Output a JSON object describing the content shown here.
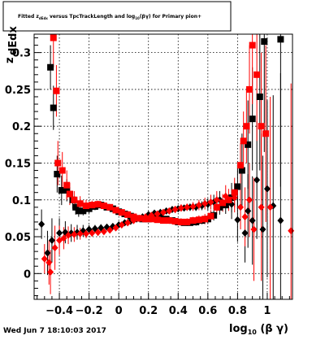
{
  "title": {
    "line": "Fitted z",
    "sub": "dEdx",
    "rest": " versus TpcTrackLength and log",
    "sub2": "10",
    "tail": "(βγ) for Primary pion+"
  },
  "date_label": "Wed Jun  7 18:10:03 2017",
  "chart_data": {
    "type": "scatter",
    "xlabel": "log10 (β γ)",
    "ylabel": "z dEdx",
    "xlim": [
      -0.57,
      1.17
    ],
    "ylim": [
      -0.035,
      0.325
    ],
    "grid": true,
    "x_ticks": [
      -0.4,
      -0.2,
      0,
      0.2,
      0.4,
      0.6,
      0.8,
      1
    ],
    "x_tick_labels": [
      "−0.4",
      "−0.2",
      "0",
      "0.2",
      "0.4",
      "0.6",
      "0.8",
      "1"
    ],
    "y_ticks": [
      0,
      0.05,
      0.1,
      0.15,
      0.2,
      0.25,
      0.3
    ],
    "y_tick_labels": [
      "0",
      "0.05",
      "0.1",
      "0.15",
      "0.2",
      "0.25",
      "0.3"
    ],
    "colors": {
      "black": "#000000",
      "red": "#ff0000"
    },
    "series": [
      {
        "color": "#000000",
        "marker": "square",
        "points": [
          {
            "x": -0.46,
            "y": 0.28,
            "e": 0.03
          },
          {
            "x": -0.44,
            "y": 0.225,
            "e": 0.03
          },
          {
            "x": -0.415,
            "y": 0.135,
            "e": 0.025
          },
          {
            "x": -0.385,
            "y": 0.113,
            "e": 0.02
          },
          {
            "x": -0.35,
            "y": 0.113,
            "e": 0.015
          },
          {
            "x": -0.31,
            "y": 0.1,
            "e": 0.012
          },
          {
            "x": -0.29,
            "y": 0.09,
            "e": 0.01
          },
          {
            "x": -0.27,
            "y": 0.085,
            "e": 0.008
          },
          {
            "x": -0.24,
            "y": 0.085,
            "e": 0.006
          },
          {
            "x": -0.2,
            "y": 0.088,
            "e": 0.006
          },
          {
            "x": -0.16,
            "y": 0.091,
            "e": 0.005
          },
          {
            "x": -0.12,
            "y": 0.093,
            "e": 0.004
          },
          {
            "x": -0.08,
            "y": 0.09,
            "e": 0.004
          },
          {
            "x": -0.04,
            "y": 0.088,
            "e": 0.004
          },
          {
            "x": 0.0,
            "y": 0.084,
            "e": 0.004
          },
          {
            "x": 0.04,
            "y": 0.081,
            "e": 0.004
          },
          {
            "x": 0.08,
            "y": 0.078,
            "e": 0.004
          },
          {
            "x": 0.12,
            "y": 0.075,
            "e": 0.004
          },
          {
            "x": 0.16,
            "y": 0.074,
            "e": 0.004
          },
          {
            "x": 0.2,
            "y": 0.074,
            "e": 0.004
          },
          {
            "x": 0.24,
            "y": 0.075,
            "e": 0.004
          },
          {
            "x": 0.28,
            "y": 0.076,
            "e": 0.004
          },
          {
            "x": 0.32,
            "y": 0.074,
            "e": 0.004
          },
          {
            "x": 0.36,
            "y": 0.072,
            "e": 0.004
          },
          {
            "x": 0.4,
            "y": 0.07,
            "e": 0.004
          },
          {
            "x": 0.44,
            "y": 0.069,
            "e": 0.004
          },
          {
            "x": 0.48,
            "y": 0.069,
            "e": 0.004
          },
          {
            "x": 0.52,
            "y": 0.07,
            "e": 0.005
          },
          {
            "x": 0.56,
            "y": 0.072,
            "e": 0.005
          },
          {
            "x": 0.6,
            "y": 0.074,
            "e": 0.006
          },
          {
            "x": 0.64,
            "y": 0.079,
            "e": 0.007
          },
          {
            "x": 0.68,
            "y": 0.09,
            "e": 0.01
          },
          {
            "x": 0.72,
            "y": 0.093,
            "e": 0.012
          },
          {
            "x": 0.76,
            "y": 0.103,
            "e": 0.02
          },
          {
            "x": 0.8,
            "y": 0.118,
            "e": 0.03
          },
          {
            "x": 0.83,
            "y": 0.14,
            "e": 0.05
          },
          {
            "x": 0.87,
            "y": 0.175,
            "e": 0.06
          },
          {
            "x": 0.9,
            "y": 0.21,
            "e": 0.07
          },
          {
            "x": 0.95,
            "y": 0.24,
            "e": 0.1
          },
          {
            "x": 0.98,
            "y": 0.315,
            "e": 0.15
          },
          {
            "x": 1.09,
            "y": 0.318,
            "e": 0.2
          }
        ]
      },
      {
        "color": "#000000",
        "marker": "diamond",
        "points": [
          {
            "x": -0.52,
            "y": 0.067,
            "e": 0.02
          },
          {
            "x": -0.48,
            "y": 0.028,
            "e": 0.03
          },
          {
            "x": -0.45,
            "y": 0.045,
            "e": 0.03
          },
          {
            "x": -0.4,
            "y": 0.055,
            "e": 0.02
          },
          {
            "x": -0.36,
            "y": 0.056,
            "e": 0.015
          },
          {
            "x": -0.32,
            "y": 0.055,
            "e": 0.012
          },
          {
            "x": -0.28,
            "y": 0.056,
            "e": 0.01
          },
          {
            "x": -0.24,
            "y": 0.058,
            "e": 0.008
          },
          {
            "x": -0.2,
            "y": 0.06,
            "e": 0.006
          },
          {
            "x": -0.16,
            "y": 0.061,
            "e": 0.005
          },
          {
            "x": -0.12,
            "y": 0.062,
            "e": 0.005
          },
          {
            "x": -0.08,
            "y": 0.063,
            "e": 0.004
          },
          {
            "x": -0.04,
            "y": 0.064,
            "e": 0.004
          },
          {
            "x": 0.0,
            "y": 0.066,
            "e": 0.004
          },
          {
            "x": 0.04,
            "y": 0.069,
            "e": 0.004
          },
          {
            "x": 0.08,
            "y": 0.071,
            "e": 0.004
          },
          {
            "x": 0.12,
            "y": 0.074,
            "e": 0.004
          },
          {
            "x": 0.16,
            "y": 0.077,
            "e": 0.004
          },
          {
            "x": 0.2,
            "y": 0.08,
            "e": 0.004
          },
          {
            "x": 0.24,
            "y": 0.082,
            "e": 0.004
          },
          {
            "x": 0.28,
            "y": 0.083,
            "e": 0.004
          },
          {
            "x": 0.32,
            "y": 0.085,
            "e": 0.004
          },
          {
            "x": 0.36,
            "y": 0.087,
            "e": 0.004
          },
          {
            "x": 0.4,
            "y": 0.088,
            "e": 0.004
          },
          {
            "x": 0.44,
            "y": 0.089,
            "e": 0.004
          },
          {
            "x": 0.48,
            "y": 0.09,
            "e": 0.005
          },
          {
            "x": 0.52,
            "y": 0.09,
            "e": 0.005
          },
          {
            "x": 0.56,
            "y": 0.092,
            "e": 0.006
          },
          {
            "x": 0.6,
            "y": 0.094,
            "e": 0.008
          },
          {
            "x": 0.64,
            "y": 0.097,
            "e": 0.01
          },
          {
            "x": 0.68,
            "y": 0.1,
            "e": 0.012
          },
          {
            "x": 0.76,
            "y": 0.094,
            "e": 0.02
          },
          {
            "x": 0.8,
            "y": 0.073,
            "e": 0.03
          },
          {
            "x": 0.85,
            "y": 0.055,
            "e": 0.04
          },
          {
            "x": 0.87,
            "y": 0.085,
            "e": 0.05
          },
          {
            "x": 0.9,
            "y": 0.072,
            "e": 0.06
          },
          {
            "x": 0.93,
            "y": 0.127,
            "e": 0.08
          },
          {
            "x": 0.97,
            "y": 0.06,
            "e": 0.1
          },
          {
            "x": 1.0,
            "y": 0.115,
            "e": 0.12
          },
          {
            "x": 1.04,
            "y": 0.092,
            "e": 0.15
          },
          {
            "x": 1.09,
            "y": 0.072,
            "e": 0.2
          }
        ]
      },
      {
        "color": "#ff0000",
        "marker": "square",
        "points": [
          {
            "x": -0.44,
            "y": 0.32,
            "e": 0.04
          },
          {
            "x": -0.42,
            "y": 0.248,
            "e": 0.035
          },
          {
            "x": -0.41,
            "y": 0.15,
            "e": 0.03
          },
          {
            "x": -0.38,
            "y": 0.14,
            "e": 0.025
          },
          {
            "x": -0.35,
            "y": 0.12,
            "e": 0.02
          },
          {
            "x": -0.33,
            "y": 0.108,
            "e": 0.015
          },
          {
            "x": -0.3,
            "y": 0.1,
            "e": 0.012
          },
          {
            "x": -0.26,
            "y": 0.095,
            "e": 0.01
          },
          {
            "x": -0.22,
            "y": 0.092,
            "e": 0.008
          },
          {
            "x": -0.18,
            "y": 0.093,
            "e": 0.006
          },
          {
            "x": -0.14,
            "y": 0.094,
            "e": 0.005
          },
          {
            "x": -0.1,
            "y": 0.092,
            "e": 0.005
          },
          {
            "x": -0.06,
            "y": 0.09,
            "e": 0.004
          },
          {
            "x": -0.02,
            "y": 0.086,
            "e": 0.004
          },
          {
            "x": 0.02,
            "y": 0.083,
            "e": 0.004
          },
          {
            "x": 0.06,
            "y": 0.08,
            "e": 0.004
          },
          {
            "x": 0.1,
            "y": 0.077,
            "e": 0.004
          },
          {
            "x": 0.14,
            "y": 0.075,
            "e": 0.004
          },
          {
            "x": 0.18,
            "y": 0.074,
            "e": 0.004
          },
          {
            "x": 0.22,
            "y": 0.074,
            "e": 0.004
          },
          {
            "x": 0.26,
            "y": 0.073,
            "e": 0.004
          },
          {
            "x": 0.3,
            "y": 0.072,
            "e": 0.004
          },
          {
            "x": 0.34,
            "y": 0.072,
            "e": 0.004
          },
          {
            "x": 0.38,
            "y": 0.071,
            "e": 0.004
          },
          {
            "x": 0.42,
            "y": 0.07,
            "e": 0.005
          },
          {
            "x": 0.46,
            "y": 0.07,
            "e": 0.005
          },
          {
            "x": 0.5,
            "y": 0.072,
            "e": 0.005
          },
          {
            "x": 0.54,
            "y": 0.073,
            "e": 0.006
          },
          {
            "x": 0.58,
            "y": 0.074,
            "e": 0.007
          },
          {
            "x": 0.62,
            "y": 0.078,
            "e": 0.008
          },
          {
            "x": 0.66,
            "y": 0.09,
            "e": 0.01
          },
          {
            "x": 0.7,
            "y": 0.096,
            "e": 0.012
          },
          {
            "x": 0.74,
            "y": 0.1,
            "e": 0.015
          },
          {
            "x": 0.78,
            "y": 0.11,
            "e": 0.02
          },
          {
            "x": 0.82,
            "y": 0.147,
            "e": 0.03
          },
          {
            "x": 0.84,
            "y": 0.18,
            "e": 0.04
          },
          {
            "x": 0.86,
            "y": 0.2,
            "e": 0.05
          },
          {
            "x": 0.88,
            "y": 0.25,
            "e": 0.06
          },
          {
            "x": 0.9,
            "y": 0.31,
            "e": 0.08
          },
          {
            "x": 0.93,
            "y": 0.27,
            "e": 0.09
          },
          {
            "x": 0.96,
            "y": 0.2,
            "e": 0.1
          },
          {
            "x": 0.99,
            "y": 0.19,
            "e": 0.12
          }
        ]
      },
      {
        "color": "#ff0000",
        "marker": "diamond",
        "points": [
          {
            "x": -0.5,
            "y": 0.02,
            "e": 0.02
          },
          {
            "x": -0.47,
            "y": 0.015,
            "e": 0.03
          },
          {
            "x": -0.46,
            "y": 0.002,
            "e": 0.03
          },
          {
            "x": -0.43,
            "y": 0.035,
            "e": 0.03
          },
          {
            "x": -0.4,
            "y": 0.045,
            "e": 0.02
          },
          {
            "x": -0.37,
            "y": 0.048,
            "e": 0.015
          },
          {
            "x": -0.34,
            "y": 0.052,
            "e": 0.012
          },
          {
            "x": -0.3,
            "y": 0.053,
            "e": 0.01
          },
          {
            "x": -0.26,
            "y": 0.054,
            "e": 0.008
          },
          {
            "x": -0.22,
            "y": 0.054,
            "e": 0.006
          },
          {
            "x": -0.18,
            "y": 0.055,
            "e": 0.005
          },
          {
            "x": -0.14,
            "y": 0.056,
            "e": 0.005
          },
          {
            "x": -0.1,
            "y": 0.057,
            "e": 0.004
          },
          {
            "x": -0.06,
            "y": 0.059,
            "e": 0.004
          },
          {
            "x": -0.02,
            "y": 0.062,
            "e": 0.004
          },
          {
            "x": 0.02,
            "y": 0.066,
            "e": 0.004
          },
          {
            "x": 0.06,
            "y": 0.069,
            "e": 0.004
          },
          {
            "x": 0.1,
            "y": 0.072,
            "e": 0.004
          },
          {
            "x": 0.14,
            "y": 0.075,
            "e": 0.004
          },
          {
            "x": 0.18,
            "y": 0.077,
            "e": 0.004
          },
          {
            "x": 0.22,
            "y": 0.079,
            "e": 0.004
          },
          {
            "x": 0.26,
            "y": 0.081,
            "e": 0.004
          },
          {
            "x": 0.3,
            "y": 0.083,
            "e": 0.004
          },
          {
            "x": 0.34,
            "y": 0.085,
            "e": 0.004
          },
          {
            "x": 0.38,
            "y": 0.087,
            "e": 0.005
          },
          {
            "x": 0.42,
            "y": 0.089,
            "e": 0.005
          },
          {
            "x": 0.46,
            "y": 0.09,
            "e": 0.005
          },
          {
            "x": 0.5,
            "y": 0.091,
            "e": 0.006
          },
          {
            "x": 0.54,
            "y": 0.093,
            "e": 0.007
          },
          {
            "x": 0.58,
            "y": 0.095,
            "e": 0.008
          },
          {
            "x": 0.62,
            "y": 0.097,
            "e": 0.01
          },
          {
            "x": 0.66,
            "y": 0.1,
            "e": 0.012
          },
          {
            "x": 0.72,
            "y": 0.105,
            "e": 0.015
          },
          {
            "x": 0.78,
            "y": 0.103,
            "e": 0.02
          },
          {
            "x": 0.82,
            "y": 0.09,
            "e": 0.03
          },
          {
            "x": 0.85,
            "y": 0.077,
            "e": 0.04
          },
          {
            "x": 0.88,
            "y": 0.1,
            "e": 0.05
          },
          {
            "x": 0.91,
            "y": 0.06,
            "e": 0.07
          },
          {
            "x": 0.96,
            "y": 0.09,
            "e": 0.1
          },
          {
            "x": 1.02,
            "y": 0.09,
            "e": 0.15
          },
          {
            "x": 1.16,
            "y": 0.058,
            "e": 0.2
          }
        ]
      }
    ]
  }
}
